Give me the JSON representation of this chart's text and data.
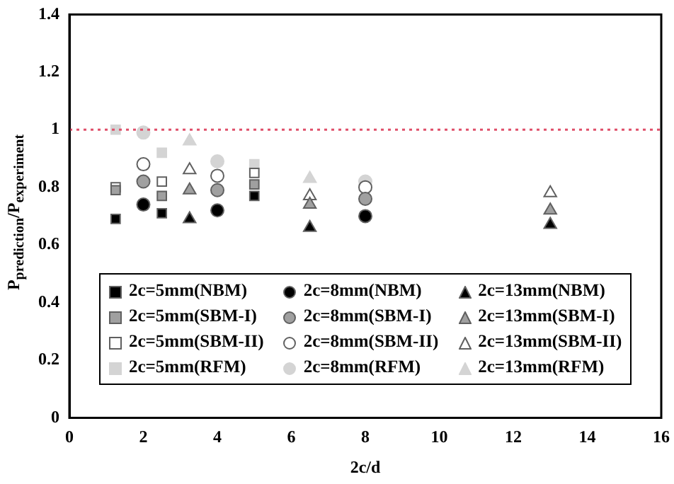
{
  "chart_data": {
    "type": "scatter",
    "xlabel": "2c/d",
    "ylabel": "P$_{prediction}$/P$_{experiment}$",
    "xlim": [
      0,
      16
    ],
    "xticks": [
      0,
      2,
      4,
      6,
      8,
      10,
      12,
      14,
      16
    ],
    "ylim": [
      0,
      1.4
    ],
    "yticks": [
      0,
      0.2,
      0.4,
      0.6,
      0.8,
      1,
      1.2,
      1.4
    ],
    "grid": false,
    "legend": "bottom",
    "ref_lines": [
      {
        "axis": "y",
        "value": 1,
        "color": "#e0506a",
        "line_style": "dotted"
      }
    ],
    "series": [
      {
        "name": "2c=5mm(NBM)",
        "color": "#000000",
        "marker": "square",
        "x": [
          1.25,
          2.5,
          5
        ],
        "values": [
          0.69,
          0.71,
          0.77
        ]
      },
      {
        "name": "2c=8mm(NBM)",
        "color": "#000000",
        "marker": "circle",
        "x": [
          2,
          4,
          8
        ],
        "values": [
          0.74,
          0.72,
          0.7
        ]
      },
      {
        "name": "2c=13mm(NBM)",
        "color": "#000000",
        "marker": "triangle",
        "x": [
          3.25,
          6.5,
          13
        ],
        "values": [
          0.69,
          0.66,
          0.67
        ]
      },
      {
        "name": "2c=5mm(SBM-I)",
        "color": "#a0a0a0",
        "marker": "square",
        "x": [
          1.25,
          2.5,
          5
        ],
        "values": [
          0.79,
          0.77,
          0.81
        ]
      },
      {
        "name": "2c=8mm(SBM-I)",
        "color": "#a0a0a0",
        "marker": "circle",
        "x": [
          2,
          4,
          8
        ],
        "values": [
          0.82,
          0.79,
          0.76
        ]
      },
      {
        "name": "2c=13mm(SBM-I)",
        "color": "#a0a0a0",
        "marker": "triangle",
        "x": [
          3.25,
          6.5,
          13
        ],
        "values": [
          0.79,
          0.74,
          0.72
        ]
      },
      {
        "name": "2c=5mm(SBM-II)",
        "color": "#ffffff",
        "marker": "square",
        "x": [
          1.25,
          2.5,
          5
        ],
        "values": [
          0.8,
          0.82,
          0.85
        ]
      },
      {
        "name": "2c=8mm(SBM-II)",
        "color": "#ffffff",
        "marker": "circle",
        "x": [
          2,
          4,
          8
        ],
        "values": [
          0.88,
          0.84,
          0.8
        ]
      },
      {
        "name": "2c=13mm(SBM-II)",
        "color": "#ffffff",
        "marker": "triangle",
        "x": [
          3.25,
          6.5,
          13
        ],
        "values": [
          0.86,
          0.77,
          0.78
        ]
      },
      {
        "name": "2c=5mm(RFM)",
        "color": "#d4d4d4",
        "marker": "square",
        "x": [
          1.25,
          2.5,
          5
        ],
        "values": [
          1.0,
          0.92,
          0.88
        ]
      },
      {
        "name": "2c=8mm(RFM)",
        "color": "#d4d4d4",
        "marker": "circle",
        "x": [
          2,
          4,
          8
        ],
        "values": [
          0.99,
          0.89,
          0.82
        ]
      },
      {
        "name": "2c=13mm(RFM)",
        "color": "#d4d4d4",
        "marker": "triangle",
        "x": [
          3.25,
          6.5
        ],
        "values": [
          0.96,
          0.83
        ]
      }
    ]
  }
}
